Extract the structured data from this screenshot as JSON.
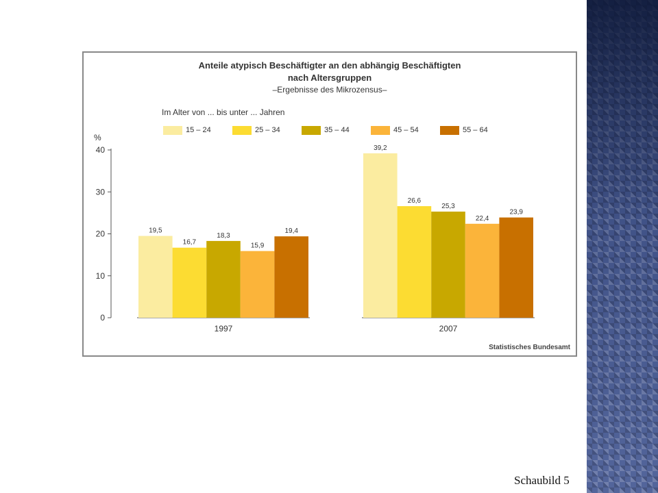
{
  "slide": {
    "caption": "Schaubild 5"
  },
  "colors": {
    "side_panel": "#4a5d96",
    "frame": "#888888"
  },
  "chart_data": {
    "type": "bar",
    "title": "Anteile atypisch Beschäftigter an den abhängig Beschäftigten",
    "title_line2": "nach Altersgruppen",
    "subtitle": "–Ergebnisse des Mikrozensus–",
    "legend_title": "Im Alter von ... bis unter ... Jahren",
    "ylabel": "%",
    "xlabel": "",
    "categories": [
      "1997",
      "2007"
    ],
    "ylim": [
      0,
      40
    ],
    "yticks": [
      0,
      10,
      20,
      30,
      40
    ],
    "grid": false,
    "legend_position": "top",
    "value_format": "decimal-comma",
    "series": [
      {
        "name": "15 – 24",
        "color": "#fbeca0",
        "values": [
          19.5,
          39.2
        ]
      },
      {
        "name": "25 – 34",
        "color": "#fcdc32",
        "values": [
          16.7,
          26.6
        ]
      },
      {
        "name": "35 – 44",
        "color": "#c8a800",
        "values": [
          18.3,
          25.3
        ]
      },
      {
        "name": "45 – 54",
        "color": "#fbb43a",
        "values": [
          15.9,
          22.4
        ]
      },
      {
        "name": "55 – 64",
        "color": "#c87000",
        "values": [
          19.4,
          23.9
        ]
      }
    ],
    "source": "Statistisches Bundesamt"
  }
}
